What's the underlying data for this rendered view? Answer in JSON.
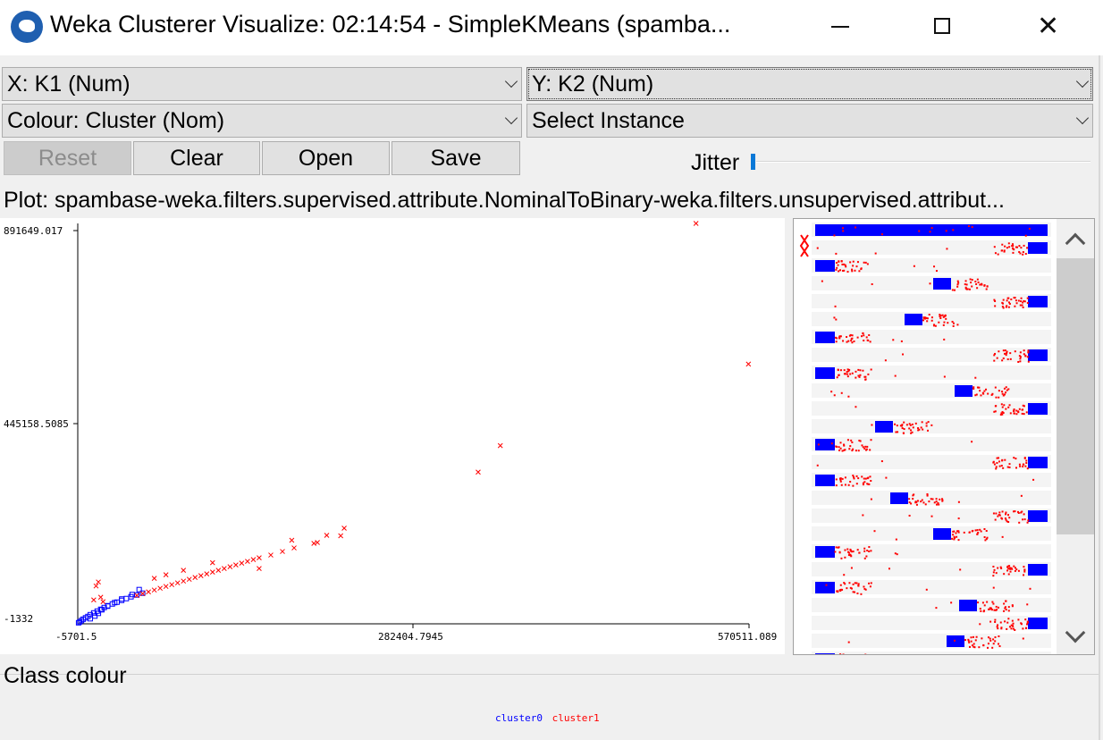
{
  "window": {
    "title": "Weka Clusterer Visualize: 02:14:54 - SimpleKMeans (spamba...",
    "icon": "weka-bird-icon"
  },
  "controls": {
    "x_axis": "X: K1 (Num)",
    "y_axis": "Y: K2 (Num)",
    "colour": "Colour: Cluster (Nom)",
    "select_instance": "Select Instance",
    "buttons": {
      "reset": "Reset",
      "clear": "Clear",
      "open": "Open",
      "save": "Save"
    },
    "jitter_label": "Jitter",
    "jitter_value": 0
  },
  "plot": {
    "title": "Plot: spambase-weka.filters.supervised.attribute.NominalToBinary-weka.filters.unsupervised.attribut...",
    "chart_data": {
      "type": "scatter",
      "x_ticks": [
        "-5701.5",
        "282404.7945",
        "570511.089"
      ],
      "y_ticks": [
        "891649.017",
        "445158.5085",
        "-1332"
      ],
      "xlim": [
        -5701.5,
        570511.089
      ],
      "ylim": [
        -1332,
        891649.017
      ],
      "colors": {
        "cluster0": "#0000ff",
        "cluster1": "#ff0000"
      },
      "series": [
        {
          "name": "cluster0",
          "color": "#0000ff",
          "x": [
            -5000,
            -4000,
            -2500,
            -1000,
            1000,
            3000,
            5000,
            8000,
            11000,
            14000,
            17000,
            20000,
            24000,
            28000,
            32000,
            36000,
            40000,
            45000,
            50000,
            12000,
            15000,
            20000,
            26000,
            32000,
            41000,
            47000,
            5000,
            9000
          ],
          "y": [
            1000,
            3000,
            6000,
            9000,
            12000,
            15000,
            19000,
            23000,
            27000,
            31000,
            35000,
            39000,
            43000,
            47000,
            51000,
            55000,
            59000,
            63000,
            67000,
            22000,
            30000,
            38000,
            46000,
            54000,
            64000,
            75000,
            10000,
            16000
          ]
        },
        {
          "name": "cluster1",
          "color": "#ff0000",
          "x": [
            10000,
            12000,
            8000,
            14000,
            16000,
            45000,
            50000,
            55000,
            60000,
            65000,
            70000,
            75000,
            80000,
            85000,
            90000,
            95000,
            100000,
            105000,
            110000,
            115000,
            120000,
            125000,
            130000,
            135000,
            140000,
            145000,
            150000,
            160000,
            170000,
            180000,
            200000,
            220000,
            338000,
            357000,
            525000,
            570000,
            60000,
            70000,
            85000,
            110000,
            150000,
            178000,
            197000,
            208000,
            223000
          ],
          "y": [
            83000,
            92000,
            52000,
            58000,
            48000,
            62000,
            66000,
            70000,
            74000,
            78000,
            82000,
            86000,
            90000,
            94000,
            98000,
            102000,
            106000,
            110000,
            114000,
            118000,
            122000,
            126000,
            130000,
            134000,
            138000,
            142000,
            146000,
            152000,
            160000,
            168000,
            180000,
            195000,
            337000,
            396000,
            891649,
            578000,
            100000,
            108000,
            118000,
            135000,
            122000,
            185000,
            178000,
            196000,
            212000
          ]
        }
      ]
    }
  },
  "matrix": {
    "description_rows": 25
  },
  "legend": {
    "heading": "Class colour",
    "items": [
      {
        "label": "cluster0",
        "color": "#0000ff"
      },
      {
        "label": "cluster1",
        "color": "#ff0000"
      }
    ]
  }
}
